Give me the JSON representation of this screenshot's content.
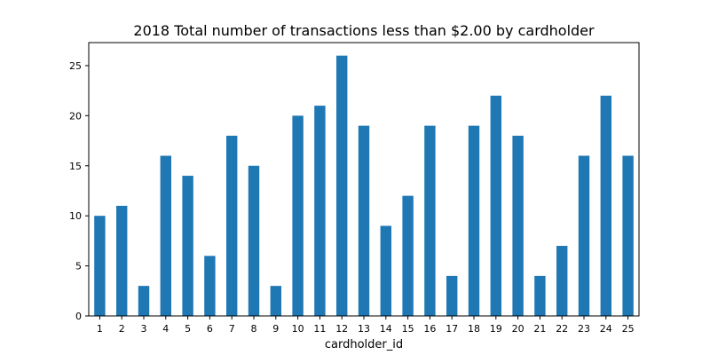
{
  "chart_data": {
    "type": "bar",
    "title": "2018 Total number of transactions less than $2.00 by cardholder",
    "xlabel": "cardholder_id",
    "ylabel": "",
    "categories": [
      "1",
      "2",
      "3",
      "4",
      "5",
      "6",
      "7",
      "8",
      "9",
      "10",
      "11",
      "12",
      "13",
      "14",
      "15",
      "16",
      "17",
      "18",
      "19",
      "20",
      "21",
      "22",
      "23",
      "24",
      "25"
    ],
    "values": [
      10,
      11,
      3,
      16,
      14,
      6,
      18,
      15,
      3,
      20,
      21,
      26,
      19,
      9,
      12,
      19,
      4,
      19,
      22,
      18,
      4,
      7,
      16,
      22,
      16
    ],
    "ylim": [
      0,
      27.3
    ],
    "yticks": [
      0,
      5,
      10,
      15,
      20,
      25
    ],
    "grid": false,
    "legend": "none",
    "bar_color": "#1f77b4"
  }
}
